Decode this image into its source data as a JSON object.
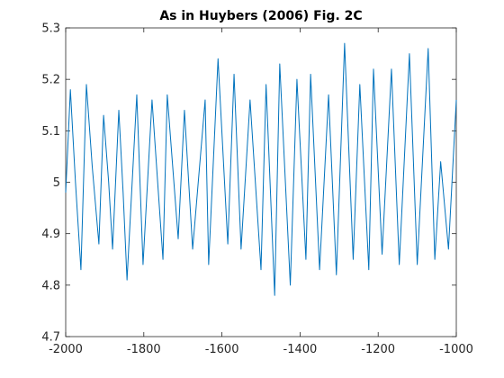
{
  "chart_data": {
    "type": "line",
    "title": "As in Huybers (2006) Fig. 2C",
    "x": [
      -2000,
      -1988,
      -1975,
      -1961,
      -1947,
      -1932,
      -1915,
      -1903,
      -1890,
      -1880,
      -1864,
      -1853,
      -1843,
      -1818,
      -1802,
      -1779,
      -1751,
      -1740,
      -1712,
      -1696,
      -1675,
      -1643,
      -1634,
      -1610,
      -1585,
      -1569,
      -1551,
      -1528,
      -1500,
      -1487,
      -1465,
      -1452,
      -1425,
      -1408,
      -1385,
      -1373,
      -1350,
      -1327,
      -1307,
      -1286,
      -1264,
      -1247,
      -1224,
      -1212,
      -1190,
      -1166,
      -1146,
      -1120,
      -1100,
      -1072,
      -1055,
      -1040,
      -1020,
      -1000
    ],
    "series": [
      {
        "color": "#0072bd",
        "values": [
          4.98,
          5.18,
          5.0,
          4.83,
          5.19,
          5.03,
          4.88,
          5.13,
          5.0,
          4.87,
          5.14,
          4.98,
          4.81,
          5.17,
          4.84,
          5.16,
          4.85,
          5.17,
          4.89,
          5.14,
          4.87,
          5.16,
          4.84,
          5.24,
          4.88,
          5.21,
          4.87,
          5.16,
          4.83,
          5.19,
          4.78,
          5.23,
          4.8,
          5.2,
          4.85,
          5.21,
          4.83,
          5.17,
          4.82,
          5.27,
          4.85,
          5.19,
          4.83,
          5.22,
          4.86,
          5.22,
          4.84,
          5.25,
          4.84,
          5.26,
          4.85,
          5.04,
          4.87,
          5.16
        ]
      }
    ],
    "xlim": [
      -2000,
      -1000
    ],
    "xticks": [
      -2000,
      -1800,
      -1600,
      -1400,
      -1200,
      -1000
    ],
    "ylim": [
      4.7,
      5.3
    ],
    "yticks": [
      4.7,
      4.8,
      4.9,
      5,
      5.1,
      5.2,
      5.3
    ],
    "grid": false
  }
}
